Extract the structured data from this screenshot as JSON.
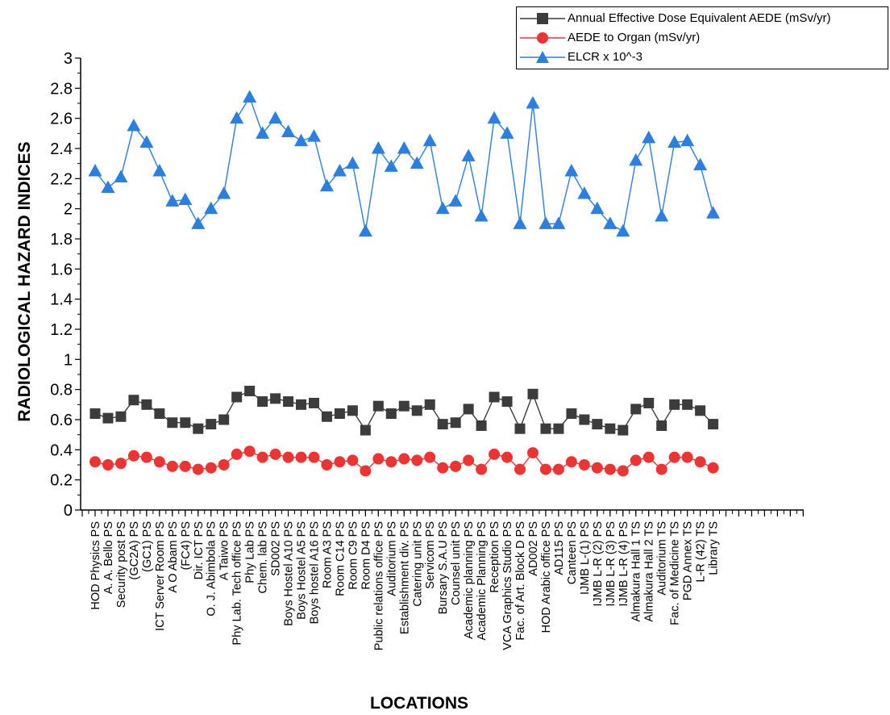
{
  "chart_data": {
    "type": "line",
    "title": "",
    "xlabel": "LOCATIONS",
    "ylabel": "RADIOLOGICAL HAZARD INDICES",
    "ylim": [
      0,
      3
    ],
    "yticks": [
      "0",
      "0.2",
      "0.4",
      "0.6",
      "0.8",
      "1",
      "1.2",
      "1.4",
      "1.6",
      "1.8",
      "2",
      "2.2",
      "2.4",
      "2.6",
      "2.8",
      "3"
    ],
    "legend_position": "top-right",
    "categories": [
      "HOD Physics PS",
      "A. A. Bello PS",
      "Security post PS",
      "(GC2A) PS",
      "(GC1) PS",
      "ICT Server Room PS",
      "A O Abam PS",
      "(FC4) PS",
      "Dir. ICT PS",
      "O. J. Abimbola PS",
      "A Taiwo PS",
      "Phy Lab. Tech office PS",
      "Phy Lab PS",
      "Chem. lab PS",
      "SD002 PS",
      "Boys Hostel A10 PS",
      "Boys Hostel A5 PS",
      "Boys hostel A16 PS",
      "Room A3 PS",
      "Room C14 PS",
      "Room C9 PS",
      "Room D4 PS",
      "Public relations office PS",
      "Auditorium PS",
      "Establishment div. PS",
      "Catering unit PS",
      "Servicom PS",
      "Bursary S.A.U PS",
      "Counsel unit PS",
      "Academic planning PS",
      "Academic Planning PS",
      "Reception PS",
      "VCA Graphics Studio PS",
      "Fac. of Art. Block D PS",
      "AD002 PS",
      "HOD Arabic office PS",
      "AD115 PS",
      "Canteen PS",
      "IJMB L-(1) PS",
      "IJMB L-R (2) PS",
      "IJMB L-R (3) PS",
      "IJMB L-R (4) PS",
      "Almakura Hall 1 TS",
      "Almakura Hall 2 TS",
      "Auditorium TS",
      "Fac. of Medicine TS",
      "PGD Annex TS",
      "L-R (42) TS",
      "Library TS"
    ],
    "series": [
      {
        "name": "Annual Effective Dose Equivalent AEDE (mSv/yr)",
        "color": "#3c3c3c",
        "marker": "square",
        "values": [
          0.64,
          0.61,
          0.62,
          0.73,
          0.7,
          0.64,
          0.58,
          0.58,
          0.54,
          0.57,
          0.6,
          0.75,
          0.79,
          0.72,
          0.74,
          0.72,
          0.7,
          0.71,
          0.62,
          0.64,
          0.66,
          0.53,
          0.69,
          0.64,
          0.69,
          0.66,
          0.7,
          0.57,
          0.58,
          0.67,
          0.56,
          0.75,
          0.72,
          0.54,
          0.77,
          0.54,
          0.54,
          0.64,
          0.6,
          0.57,
          0.54,
          0.53,
          0.67,
          0.71,
          0.56,
          0.7,
          0.7,
          0.66,
          0.57
        ]
      },
      {
        "name": "AEDE to Organ (mSv/yr)",
        "color": "#ee3333",
        "marker": "circle",
        "values": [
          0.32,
          0.3,
          0.31,
          0.36,
          0.35,
          0.32,
          0.29,
          0.29,
          0.27,
          0.28,
          0.3,
          0.37,
          0.39,
          0.35,
          0.37,
          0.35,
          0.35,
          0.35,
          0.3,
          0.32,
          0.33,
          0.26,
          0.34,
          0.32,
          0.34,
          0.33,
          0.35,
          0.28,
          0.29,
          0.33,
          0.27,
          0.37,
          0.35,
          0.27,
          0.38,
          0.27,
          0.27,
          0.32,
          0.3,
          0.28,
          0.27,
          0.26,
          0.33,
          0.35,
          0.27,
          0.35,
          0.35,
          0.32,
          0.28
        ]
      },
      {
        "name": "ELCR x 10^-3",
        "color": "#2a7fe0",
        "marker": "triangle",
        "values": [
          2.25,
          2.14,
          2.21,
          2.55,
          2.44,
          2.25,
          2.05,
          2.06,
          1.9,
          2.0,
          2.1,
          2.6,
          2.74,
          2.5,
          2.6,
          2.51,
          2.45,
          2.48,
          2.15,
          2.25,
          2.3,
          1.85,
          2.4,
          2.28,
          2.4,
          2.3,
          2.45,
          2.0,
          2.05,
          2.35,
          1.95,
          2.6,
          2.5,
          1.9,
          2.7,
          1.9,
          1.9,
          2.25,
          2.1,
          2.0,
          1.9,
          1.85,
          2.32,
          2.47,
          1.95,
          2.44,
          2.45,
          2.29,
          1.97
        ]
      }
    ]
  }
}
